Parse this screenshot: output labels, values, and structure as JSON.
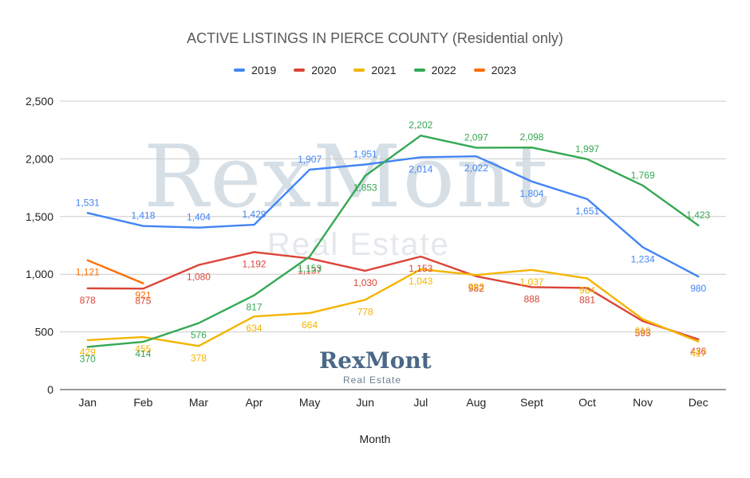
{
  "chart_data": {
    "type": "line",
    "title": "ACTIVE LISTINGS IN PIERCE COUNTY  (Residential only)",
    "xlabel": "Month",
    "ylabel": "",
    "categories": [
      "Jan",
      "Feb",
      "Mar",
      "Apr",
      "May",
      "Jun",
      "Jul",
      "Aug",
      "Sept",
      "Oct",
      "Nov",
      "Dec"
    ],
    "ylim": [
      0,
      2500
    ],
    "yticks": [
      0,
      500,
      1000,
      1500,
      2000,
      2500
    ],
    "ytick_labels": [
      "0",
      "500",
      "1,000",
      "1,500",
      "2,000",
      "2,500"
    ],
    "grid": true,
    "legend_position": "top-center",
    "series": [
      {
        "name": "2019",
        "color": "#4285f4",
        "values": [
          1531,
          1418,
          1404,
          1429,
          1907,
          1951,
          2014,
          2022,
          1804,
          1651,
          1234,
          980
        ],
        "labels": [
          "1,531",
          "1,418",
          "1,404",
          "1,429",
          "1,907",
          "1,951",
          "2,014",
          "2,022",
          "1,804",
          "1,651",
          "1,234",
          "980"
        ]
      },
      {
        "name": "2020",
        "color": "#db4437",
        "values": [
          878,
          875,
          1080,
          1192,
          1137,
          1030,
          1153,
          982,
          888,
          881,
          593,
          436
        ],
        "labels": [
          "878",
          "875",
          "1,080",
          "1,192",
          "1,137",
          "1,030",
          "1,153",
          "982",
          "888",
          "881",
          "593",
          "436"
        ]
      },
      {
        "name": "2021",
        "color": "#f4b400",
        "values": [
          429,
          455,
          378,
          634,
          664,
          778,
          1043,
          993,
          1037,
          964,
          610,
          417
        ],
        "labels": [
          "429",
          "455",
          "378",
          "634",
          "664",
          "778",
          "1,043",
          "993",
          "1,037",
          "964",
          "610",
          "417"
        ]
      },
      {
        "name": "2022",
        "color": "#34a853",
        "values": [
          370,
          414,
          576,
          817,
          1153,
          1853,
          2202,
          2097,
          2098,
          1997,
          1769,
          1423
        ],
        "labels": [
          "370",
          "414",
          "576",
          "817",
          "1,153",
          "1,853",
          "2,202",
          "2,097",
          "2,098",
          "1,997",
          "1,769",
          "1,423"
        ]
      },
      {
        "name": "2023",
        "color": "#ff6d01",
        "values": [
          1121,
          921,
          null,
          null,
          null,
          null,
          null,
          null,
          null,
          null,
          null,
          null
        ],
        "labels": [
          "1,121",
          "921",
          "",
          "",
          "",
          "",
          "",
          "",
          "",
          "",
          "",
          ""
        ]
      }
    ]
  },
  "watermark": {
    "brand": "RexMont",
    "subtitle": "Real Estate"
  },
  "logo": {
    "brand": "RexMont",
    "subtitle": "Real Estate"
  }
}
